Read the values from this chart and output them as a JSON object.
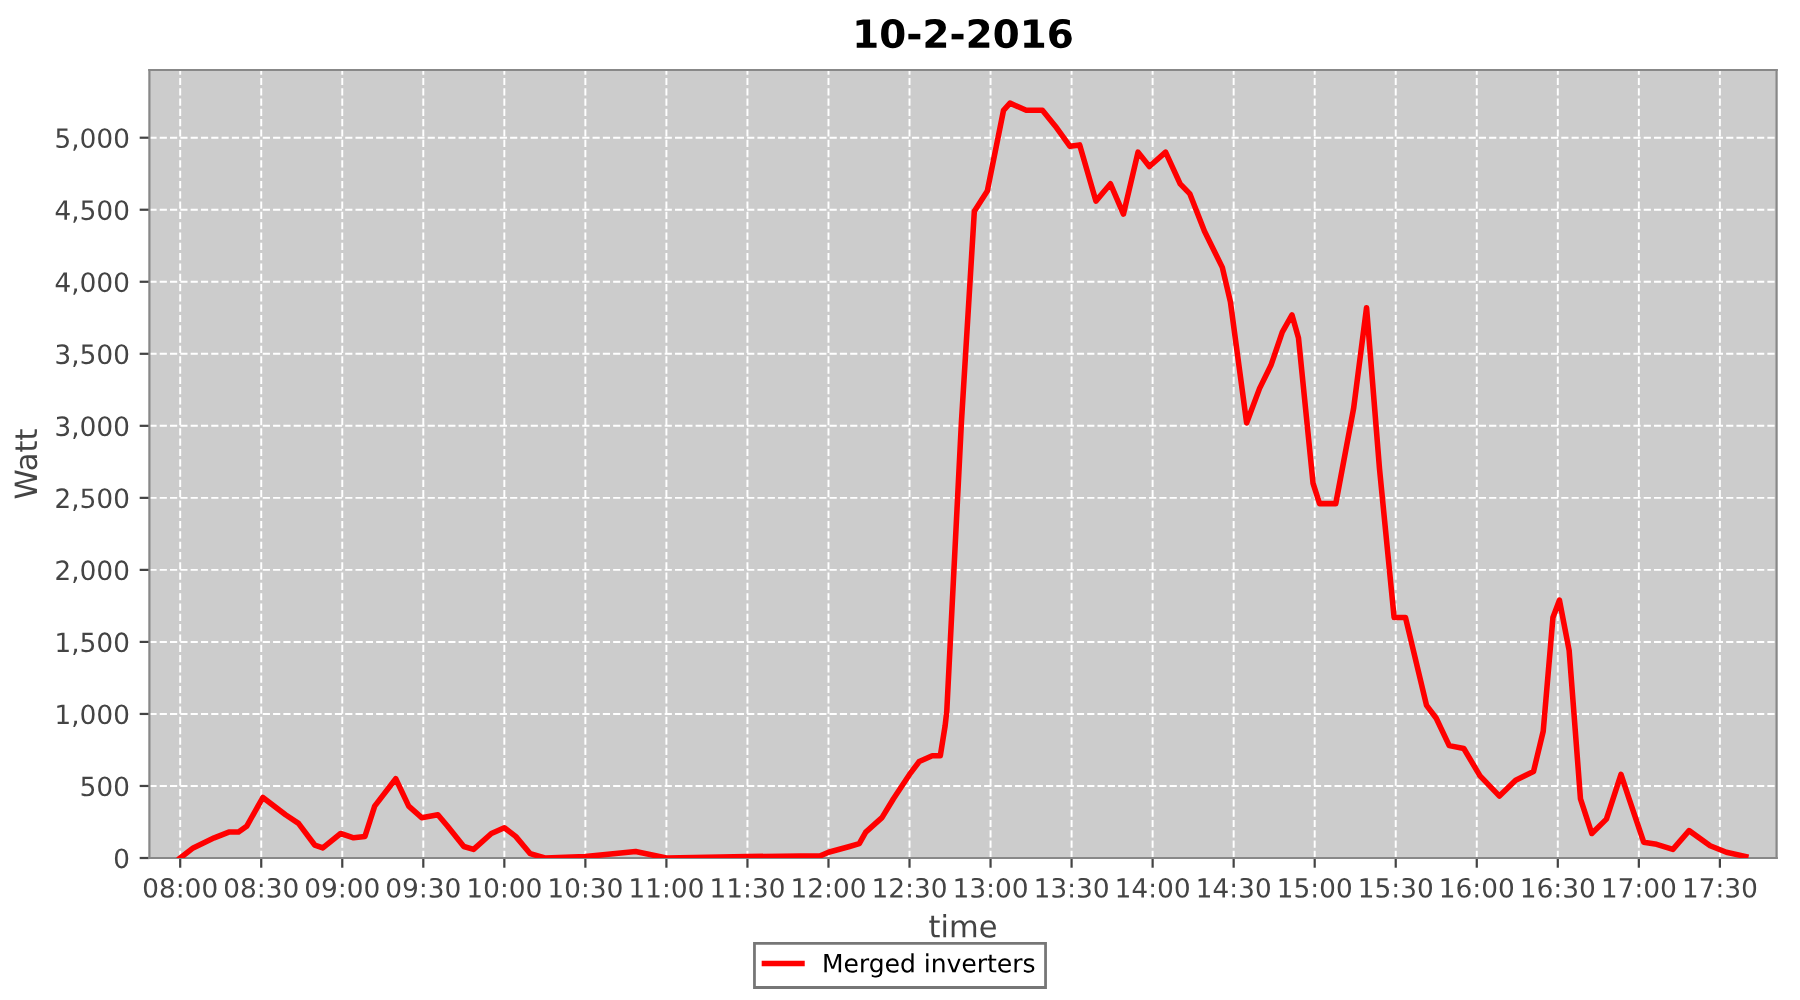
{
  "chart_data": {
    "type": "line",
    "title": "10-2-2016",
    "xlabel": "time",
    "ylabel": "Watt",
    "xlim": [
      7.81,
      17.85
    ],
    "ylim": [
      0,
      5470
    ],
    "xticks": [
      {
        "value": 8,
        "label": "08:00"
      },
      {
        "value": 8.5,
        "label": "08:30"
      },
      {
        "value": 9,
        "label": "09:00"
      },
      {
        "value": 9.5,
        "label": "09:30"
      },
      {
        "value": 10,
        "label": "10:00"
      },
      {
        "value": 10.5,
        "label": "10:30"
      },
      {
        "value": 11,
        "label": "11:00"
      },
      {
        "value": 11.5,
        "label": "11:30"
      },
      {
        "value": 12,
        "label": "12:00"
      },
      {
        "value": 12.5,
        "label": "12:30"
      },
      {
        "value": 13,
        "label": "13:00"
      },
      {
        "value": 13.5,
        "label": "13:30"
      },
      {
        "value": 14,
        "label": "14:00"
      },
      {
        "value": 14.5,
        "label": "14:30"
      },
      {
        "value": 15,
        "label": "15:00"
      },
      {
        "value": 15.5,
        "label": "15:30"
      },
      {
        "value": 16,
        "label": "16:00"
      },
      {
        "value": 16.5,
        "label": "16:30"
      },
      {
        "value": 17,
        "label": "17:00"
      },
      {
        "value": 17.5,
        "label": "17:30"
      }
    ],
    "yticks": [
      0,
      {
        "value": 500,
        "label": "500"
      },
      {
        "value": 1000,
        "label": "1,000"
      },
      {
        "value": 1500,
        "label": "1,500"
      },
      {
        "value": 2000,
        "label": "2,000"
      },
      {
        "value": 2500,
        "label": "2,500"
      },
      {
        "value": 3000,
        "label": "3,000"
      },
      {
        "value": 3500,
        "label": "3,500"
      },
      {
        "value": 4000,
        "label": "4,000"
      },
      {
        "value": 4500,
        "label": "4,500"
      },
      {
        "value": 5000,
        "label": "5,000"
      }
    ],
    "grid": true,
    "legend": "bottom",
    "marker": "none",
    "line_style": "solid",
    "series": [
      {
        "name": "Merged inverters",
        "color": "#ff0000",
        "x": [
          8.0,
          8.08,
          8.21,
          8.3,
          8.36,
          8.41,
          8.51,
          8.65,
          8.73,
          8.83,
          8.88,
          8.99,
          9.07,
          9.14,
          9.2,
          9.33,
          9.41,
          9.49,
          9.59,
          9.65,
          9.75,
          9.81,
          9.92,
          10.0,
          10.07,
          10.16,
          10.25,
          10.5,
          10.81,
          11.0,
          11.5,
          11.95,
          12.0,
          12.13,
          12.19,
          12.23,
          12.33,
          12.4,
          12.5,
          12.56,
          12.64,
          12.69,
          12.72,
          12.73,
          12.82,
          12.9,
          12.98,
          13.08,
          13.12,
          13.22,
          13.32,
          13.4,
          13.49,
          13.55,
          13.65,
          13.74,
          13.82,
          13.91,
          13.98,
          14.08,
          14.17,
          14.23,
          14.32,
          14.43,
          14.48,
          14.58,
          14.66,
          14.73,
          14.8,
          14.86,
          14.9,
          14.99,
          15.03,
          15.13,
          15.24,
          15.32,
          15.4,
          15.49,
          15.56,
          15.69,
          15.75,
          15.83,
          15.92,
          16.02,
          16.14,
          16.24,
          16.35,
          16.41,
          16.47,
          16.51,
          16.57,
          16.64,
          16.71,
          16.8,
          16.89,
          16.94,
          17.03,
          17.11,
          17.21,
          17.31,
          17.44,
          17.54,
          17.66
        ],
        "values": [
          0,
          70,
          140,
          180,
          180,
          220,
          420,
          300,
          240,
          90,
          70,
          170,
          140,
          150,
          360,
          550,
          360,
          280,
          300,
          220,
          80,
          60,
          170,
          210,
          150,
          30,
          0,
          10,
          45,
          0,
          10,
          15,
          40,
          80,
          100,
          180,
          280,
          410,
          580,
          670,
          710,
          710,
          920,
          1020,
          3020,
          4490,
          4630,
          5190,
          5240,
          5190,
          5190,
          5080,
          4940,
          4950,
          4560,
          4680,
          4470,
          4900,
          4800,
          4900,
          4680,
          4610,
          4350,
          4100,
          3860,
          3020,
          3260,
          3420,
          3650,
          3770,
          3610,
          2600,
          2460,
          2460,
          3120,
          3820,
          2700,
          1670,
          1670,
          1060,
          970,
          780,
          760,
          570,
          430,
          540,
          600,
          880,
          1670,
          1790,
          1440,
          410,
          170,
          270,
          580,
          410,
          110,
          95,
          60,
          190,
          85,
          40,
          10
        ]
      }
    ]
  }
}
